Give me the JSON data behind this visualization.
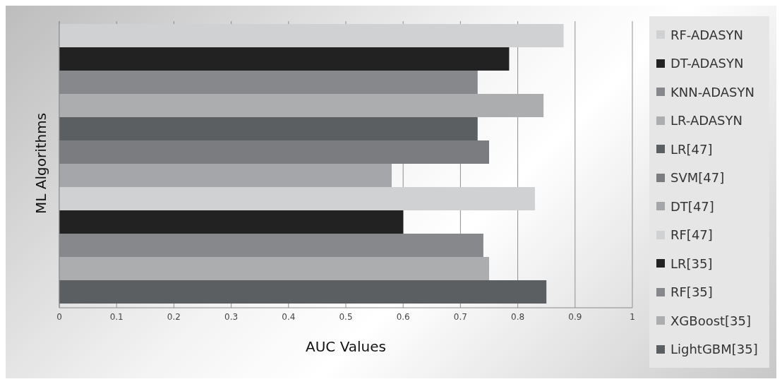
{
  "chart_data": {
    "type": "bar",
    "orientation": "horizontal",
    "xlabel": "AUC Values",
    "ylabel": "ML Algorithms",
    "categories": [
      null
    ],
    "series": [
      {
        "name": "RF-ADASYN",
        "color": "#d0d1d3",
        "values": [
          0.88
        ]
      },
      {
        "name": "DT-ADASYN",
        "color": "#222222",
        "values": [
          0.785
        ]
      },
      {
        "name": "KNN-ADASYN",
        "color": "#87888b",
        "values": [
          0.73
        ]
      },
      {
        "name": "LR-ADASYN",
        "color": "#acadaf",
        "values": [
          0.845
        ]
      },
      {
        "name": "LR[47]",
        "color": "#5c5f61",
        "values": [
          0.73
        ]
      },
      {
        "name": "SVM[47]",
        "color": "#7b7c80",
        "values": [
          0.75
        ]
      },
      {
        "name": "DT[47]",
        "color": "#a5a6a9",
        "values": [
          0.58
        ]
      },
      {
        "name": "RF[47]",
        "color": "#d0d1d3",
        "values": [
          0.83
        ]
      },
      {
        "name": "LR[35]",
        "color": "#222222",
        "values": [
          0.6
        ]
      },
      {
        "name": "RF[35]",
        "color": "#87888b",
        "values": [
          0.74
        ]
      },
      {
        "name": "XGBoost[35]",
        "color": "#acadaf",
        "values": [
          0.75
        ]
      },
      {
        "name": "LightGBM[35]",
        "color": "#5c5f61",
        "values": [
          0.85
        ]
      }
    ],
    "xlim": [
      0,
      1
    ],
    "xticks": [
      0,
      0.1,
      0.2,
      0.3,
      0.4,
      0.5,
      0.6,
      0.7,
      0.8,
      0.9,
      1
    ],
    "grid": "x",
    "legend": "right"
  }
}
